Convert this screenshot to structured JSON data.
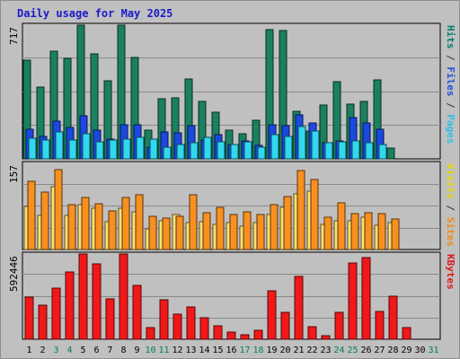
{
  "chart_data": {
    "type": "bar",
    "title": "Daily usage for May 2025",
    "days": [
      {
        "label": "1",
        "weekend": false
      },
      {
        "label": "2",
        "weekend": false
      },
      {
        "label": "3",
        "weekend": true
      },
      {
        "label": "4",
        "weekend": true
      },
      {
        "label": "5",
        "weekend": false
      },
      {
        "label": "6",
        "weekend": false
      },
      {
        "label": "7",
        "weekend": false
      },
      {
        "label": "8",
        "weekend": false
      },
      {
        "label": "9",
        "weekend": false
      },
      {
        "label": "10",
        "weekend": true
      },
      {
        "label": "11",
        "weekend": true
      },
      {
        "label": "12",
        "weekend": false
      },
      {
        "label": "13",
        "weekend": false
      },
      {
        "label": "14",
        "weekend": false
      },
      {
        "label": "15",
        "weekend": false
      },
      {
        "label": "16",
        "weekend": false
      },
      {
        "label": "17",
        "weekend": true
      },
      {
        "label": "18",
        "weekend": true
      },
      {
        "label": "19",
        "weekend": false
      },
      {
        "label": "20",
        "weekend": false
      },
      {
        "label": "21",
        "weekend": false
      },
      {
        "label": "22",
        "weekend": false
      },
      {
        "label": "23",
        "weekend": false
      },
      {
        "label": "24",
        "weekend": true
      },
      {
        "label": "25",
        "weekend": true
      },
      {
        "label": "26",
        "weekend": false
      },
      {
        "label": "27",
        "weekend": false
      },
      {
        "label": "28",
        "weekend": false
      },
      {
        "label": "29",
        "weekend": false
      },
      {
        "label": "30",
        "weekend": false
      },
      {
        "label": "31",
        "weekend": true
      }
    ],
    "panels": [
      {
        "id": "hits",
        "max_label": "717",
        "ymax": 717,
        "legend": [
          {
            "text": "Hits",
            "color": "#00806a"
          },
          {
            "text": " / ",
            "color": "#333333"
          },
          {
            "text": "Files",
            "color": "#1f4fe0"
          },
          {
            "text": " / ",
            "color": "#333333"
          },
          {
            "text": "Pages",
            "color": "#2ec0e8"
          }
        ],
        "series": [
          {
            "name": "Hits",
            "color": "#1a8060",
            "values": [
              531,
              387,
              578,
              538,
              717,
              564,
              418,
              717,
              545,
              156,
              324,
              326,
              430,
              307,
              250,
              156,
              133,
              209,
              694,
              688,
              255,
              150,
              290,
              413,
              295,
              306,
              423,
              58,
              0,
              0,
              0
            ]
          },
          {
            "name": "Files",
            "color": "#1a48e0",
            "values": [
              160,
              120,
              201,
              170,
              229,
              155,
              108,
              184,
              185,
              64,
              142,
              138,
              180,
              103,
              129,
              77,
              98,
              74,
              181,
              178,
              236,
              194,
              86,
              97,
              221,
              194,
              157,
              0,
              0,
              0,
              0
            ]
          },
          {
            "name": "Pages",
            "color": "#30d8f0",
            "values": [
              110,
              101,
              146,
              101,
              135,
              92,
              101,
              104,
              114,
              108,
              64,
              78,
              87,
              115,
              92,
              79,
              91,
              64,
              131,
              119,
              173,
              148,
              88,
              91,
              96,
              85,
              78,
              0,
              0,
              0,
              0
            ]
          }
        ]
      },
      {
        "id": "visits",
        "max_label": "157",
        "ymax": 157,
        "legend": [
          {
            "text": "Visits",
            "color": "#e8d800"
          },
          {
            "text": " / ",
            "color": "#333333"
          },
          {
            "text": "Sites",
            "color": "#f08c10"
          }
        ],
        "series": [
          {
            "name": "Visits",
            "color": "#ffe070",
            "values": [
              79,
              62,
              114,
              62,
              82,
              76,
              51,
              76,
              68,
              37,
              52,
              63,
              49,
              51,
              45,
              49,
              43,
              49,
              63,
              77,
              102,
              106,
              45,
              52,
              52,
              59,
              44,
              49,
              0,
              0,
              0
            ]
          },
          {
            "name": "Sites",
            "color": "#f89020",
            "values": [
              124,
              104,
              146,
              82,
              95,
              84,
              70,
              95,
              99,
              61,
              57,
              60,
              100,
              67,
              77,
              64,
              69,
              63,
              82,
              97,
              144,
              128,
              59,
              85,
              65,
              67,
              65,
              56,
              0,
              0,
              0
            ]
          }
        ]
      },
      {
        "id": "kbytes",
        "max_label": "592446",
        "ymax": 592446,
        "legend": [
          {
            "text": "KBytes",
            "color": "#e01818"
          }
        ],
        "series": [
          {
            "name": "KBytes",
            "color": "#f01818",
            "values": [
              291000,
              237000,
              353000,
              468000,
              592446,
              524000,
              282000,
              592446,
              375000,
              84000,
              273000,
              172000,
              224000,
              149000,
              91000,
              48000,
              30000,
              64000,
              334000,
              190000,
              439000,
              88000,
              26000,
              189000,
              530000,
              566000,
              196000,
              300000,
              84000,
              0,
              0
            ]
          }
        ]
      }
    ]
  }
}
